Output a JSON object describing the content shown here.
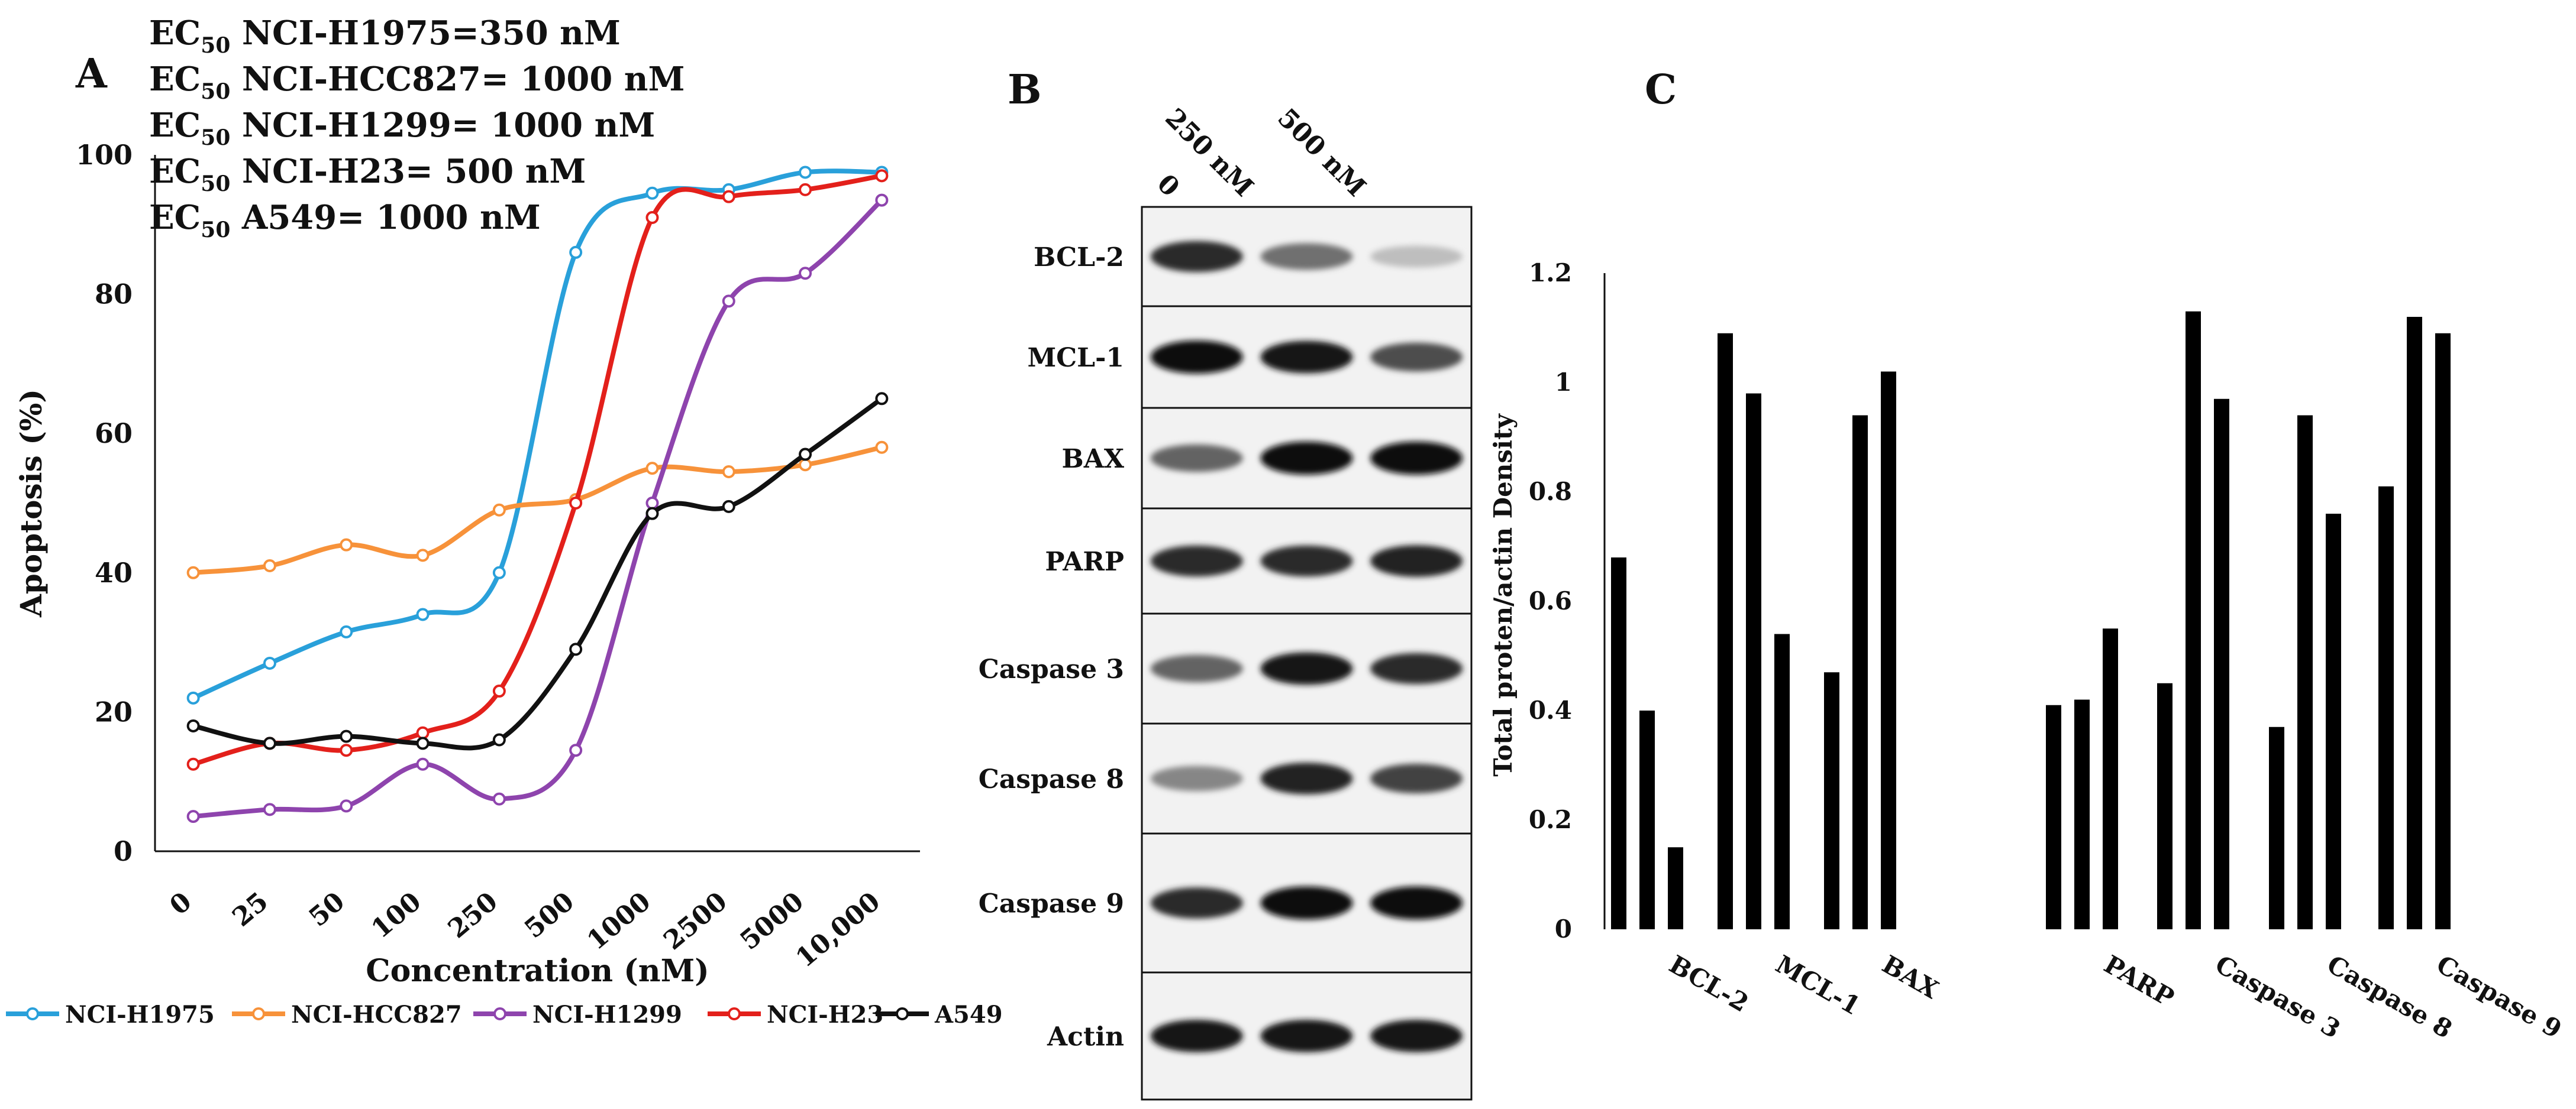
{
  "panel_labels": {
    "a": "A",
    "b": "B",
    "c": "C"
  },
  "ec50": [
    {
      "prefix": "EC",
      "sub": "50",
      "text": " NCI-H1975=350 nM"
    },
    {
      "prefix": "EC",
      "sub": "50",
      "text": " NCI-HCC827= 1000 nM"
    },
    {
      "prefix": "EC",
      "sub": "50",
      "text": " NCI-H1299= 1000 nM"
    },
    {
      "prefix": "EC",
      "sub": "50",
      "text": " NCI-H23= 500 nM"
    },
    {
      "prefix": "EC",
      "sub": "50",
      "text": " A549= 1000 nM"
    }
  ],
  "chart_data": [
    {
      "panel": "A",
      "type": "line",
      "title": "",
      "xlabel": "Concentration (nM)",
      "ylabel": "Apoptosis (%)",
      "ylim": [
        0,
        100
      ],
      "yticks": [
        0,
        20,
        40,
        60,
        80,
        100
      ],
      "categories": [
        "0",
        "25",
        "50",
        "100",
        "250",
        "500",
        "1000",
        "2500",
        "5000",
        "10,000"
      ],
      "legend_position": "bottom",
      "series": [
        {
          "name": "NCI-H1975",
          "color": "#29A0DA",
          "values": [
            22,
            27,
            31.5,
            34,
            40,
            86,
            94.5,
            95,
            97.5,
            97.5
          ]
        },
        {
          "name": "NCI-HCC827",
          "color": "#F7923A",
          "values": [
            40,
            41,
            44,
            42.5,
            49,
            50.5,
            55,
            54.5,
            55.5,
            58
          ]
        },
        {
          "name": "NCI-H1299",
          "color": "#8E44AD",
          "values": [
            5,
            6,
            6.5,
            12.5,
            7.5,
            14.5,
            50,
            79,
            83,
            93.5
          ]
        },
        {
          "name": "NCI-H23",
          "color": "#E3201B",
          "values": [
            12.5,
            15.5,
            14.5,
            17,
            23,
            50,
            91,
            94,
            95,
            97
          ]
        },
        {
          "name": "A549",
          "color": "#111111",
          "values": [
            18,
            15.5,
            16.5,
            15.5,
            16,
            29,
            48.5,
            49.5,
            57,
            65
          ]
        }
      ]
    },
    {
      "panel": "C",
      "type": "bar",
      "title": "",
      "xlabel": "",
      "ylabel": "Total proten/actin Density",
      "ylim": [
        0,
        1.2
      ],
      "yticks": [
        0,
        0.2,
        0.4,
        0.6,
        0.8,
        1,
        1.2
      ],
      "categories": [
        "BCL-2",
        "MCL-1",
        "BAX",
        "PARP",
        "Caspase 3",
        "Caspase 8",
        "Caspase 9"
      ],
      "series": [
        {
          "name": "0",
          "values": [
            0.68,
            1.09,
            0.47,
            0.41,
            0.45,
            0.37,
            0.81
          ]
        },
        {
          "name": "250 nM",
          "values": [
            0.4,
            0.98,
            0.94,
            0.42,
            1.13,
            0.94,
            1.12
          ]
        },
        {
          "name": "500 nM",
          "values": [
            0.15,
            0.54,
            1.02,
            0.55,
            0.97,
            0.76,
            1.09
          ]
        }
      ],
      "bar_color": "#000000"
    }
  ],
  "blot": {
    "columns": [
      "0",
      "250 nM",
      "500 nM"
    ],
    "rows": [
      {
        "label": "BCL-2",
        "bands": [
          0.85,
          0.55,
          0.2
        ]
      },
      {
        "label": "MCL-1",
        "bands": [
          1.0,
          0.95,
          0.7
        ]
      },
      {
        "label": "BAX",
        "bands": [
          0.6,
          1.0,
          1.0
        ]
      },
      {
        "label": "PARP",
        "bands": [
          0.85,
          0.85,
          0.9
        ]
      },
      {
        "label": "Caspase 3",
        "bands": [
          0.6,
          0.95,
          0.85
        ]
      },
      {
        "label": "Caspase 8",
        "bands": [
          0.45,
          0.9,
          0.75
        ]
      },
      {
        "label": "Caspase 9",
        "bands": [
          0.85,
          1.0,
          1.0
        ]
      },
      {
        "label": "Actin",
        "bands": [
          0.95,
          0.95,
          0.95
        ]
      }
    ]
  }
}
